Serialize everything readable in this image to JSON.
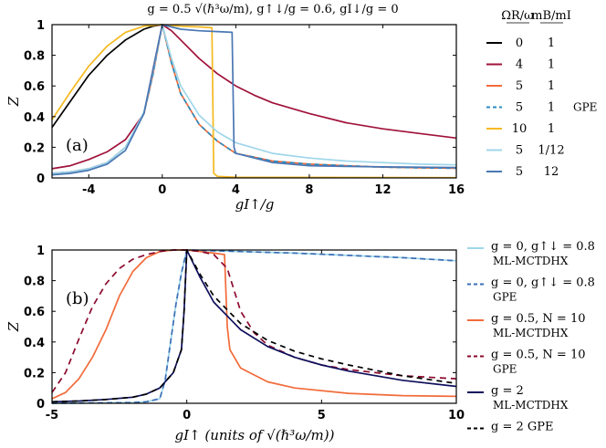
{
  "colors": {
    "black": "#000000",
    "crimson": "#a0123a",
    "coral": "#f26b3a",
    "teal": "#2a8bbf",
    "gold": "#f5b921",
    "lightblue": "#9fd6ea",
    "steel": "#4a77b4",
    "navy": "#0f0f5c",
    "darkred": "#8b0a2e",
    "dashblue": "#3b6fb6"
  },
  "chart_data": [
    {
      "id": "a",
      "type": "line",
      "panel_label": "(a)",
      "title": "g = 0.5 √(ℏ³ω/m),  g↑↓/g = 0.6,  gI↓/g = 0",
      "xlabel": "gI↑/g",
      "ylabel": "Z",
      "xlim": [
        -6,
        16
      ],
      "ylim": [
        0,
        1
      ],
      "xticks": [
        -4,
        0,
        4,
        8,
        12,
        16
      ],
      "xtick_labels": [
        "-4",
        "0",
        "4",
        "8",
        "12",
        "16"
      ],
      "yticks": [
        0,
        0.2,
        0.4,
        0.6,
        0.8,
        1
      ],
      "ytick_labels": [
        "0",
        "0.2",
        "0.4",
        "0.6",
        "0.8",
        "1"
      ],
      "legend": {
        "header": [
          "ΩR/ω",
          "mB/mI"
        ],
        "entries": [
          {
            "omega": "0",
            "mass": "1",
            "extra": ""
          },
          {
            "omega": "4",
            "mass": "1",
            "extra": ""
          },
          {
            "omega": "5",
            "mass": "1",
            "extra": ""
          },
          {
            "omega": "5",
            "mass": "1",
            "extra": "GPE"
          },
          {
            "omega": "10",
            "mass": "1",
            "extra": ""
          },
          {
            "omega": "5",
            "mass": "1/12",
            "extra": ""
          },
          {
            "omega": "5",
            "mass": "12",
            "extra": ""
          }
        ]
      },
      "series": [
        {
          "name": "ΩR/ω=0, mB/mI=1",
          "color": "#000000",
          "dash": "",
          "x": [
            -6,
            -5,
            -4,
            -3,
            -2,
            -1,
            -0.5,
            0
          ],
          "y": [
            0.33,
            0.5,
            0.67,
            0.8,
            0.9,
            0.97,
            0.99,
            1
          ]
        },
        {
          "name": "ΩR/ω=4, mB/mI=1",
          "color": "#a0123a",
          "dash": "",
          "x": [
            -6,
            -5,
            -4,
            -3,
            -2,
            -1,
            0,
            0.5,
            1,
            2,
            3,
            4,
            5,
            6,
            8,
            10,
            12,
            14,
            16
          ],
          "y": [
            0.06,
            0.08,
            0.12,
            0.17,
            0.25,
            0.42,
            1,
            0.96,
            0.9,
            0.78,
            0.68,
            0.6,
            0.54,
            0.49,
            0.42,
            0.36,
            0.32,
            0.29,
            0.26
          ]
        },
        {
          "name": "ΩR/ω=5, mB/mI=1",
          "color": "#f26b3a",
          "dash": "",
          "x": [
            -6,
            -5,
            -4,
            -3,
            -2,
            -1,
            -0.5,
            0,
            0.5,
            1,
            2,
            3,
            4,
            6,
            8,
            10,
            12,
            14,
            16
          ],
          "y": [
            0.03,
            0.04,
            0.06,
            0.1,
            0.2,
            0.42,
            0.68,
            1,
            0.75,
            0.55,
            0.35,
            0.24,
            0.16,
            0.11,
            0.09,
            0.08,
            0.07,
            0.066,
            0.063
          ]
        },
        {
          "name": "ΩR/ω=5, mB/mI=1 GPE",
          "color": "#2a8bbf",
          "dash": "5,4",
          "x": [
            -6,
            -5,
            -4,
            -3,
            -2,
            -1,
            -0.5,
            0,
            0.5,
            1,
            2,
            3,
            4,
            6,
            8,
            10,
            12,
            14,
            16
          ],
          "y": [
            0.03,
            0.04,
            0.06,
            0.1,
            0.2,
            0.42,
            0.68,
            1,
            0.75,
            0.55,
            0.35,
            0.24,
            0.16,
            0.11,
            0.09,
            0.08,
            0.07,
            0.066,
            0.063
          ]
        },
        {
          "name": "ΩR/ω=10, mB/mI=1",
          "color": "#f5b921",
          "dash": "",
          "x": [
            -6,
            -5,
            -4,
            -3,
            -2,
            -1,
            0,
            1,
            2,
            2.7,
            2.8,
            3,
            4,
            16
          ],
          "y": [
            0.38,
            0.56,
            0.73,
            0.86,
            0.95,
            0.99,
            1,
            0.99,
            0.985,
            0.98,
            0.03,
            0.01,
            0.005,
            0.002
          ]
        },
        {
          "name": "ΩR/ω=5, mB/mI=1/12",
          "color": "#9fd6ea",
          "dash": "",
          "x": [
            -6,
            -5,
            -4,
            -3,
            -2,
            -1,
            -0.5,
            0,
            0.5,
            1,
            2,
            3,
            4,
            6,
            8,
            10,
            12,
            14,
            16
          ],
          "y": [
            0.03,
            0.04,
            0.06,
            0.1,
            0.2,
            0.43,
            0.7,
            1,
            0.78,
            0.6,
            0.41,
            0.3,
            0.23,
            0.16,
            0.13,
            0.11,
            0.1,
            0.09,
            0.085
          ]
        },
        {
          "name": "ΩR/ω=5, mB/mI=12",
          "color": "#4a77b4",
          "dash": "",
          "x": [
            -6,
            -5,
            -4,
            -3,
            -2,
            -1,
            0,
            1,
            2,
            3,
            3.8,
            3.9,
            4,
            6,
            8,
            10,
            12,
            14,
            16
          ],
          "y": [
            0.02,
            0.03,
            0.05,
            0.09,
            0.18,
            0.42,
            1,
            0.97,
            0.96,
            0.955,
            0.95,
            0.2,
            0.16,
            0.1,
            0.08,
            0.075,
            0.072,
            0.07,
            0.068
          ]
        }
      ]
    },
    {
      "id": "b",
      "type": "line",
      "panel_label": "(b)",
      "title": "",
      "xlabel": "gI↑ (units of √(ℏ³ω/m))",
      "ylabel": "Z",
      "xlim": [
        -5,
        10
      ],
      "ylim": [
        0,
        1
      ],
      "xticks": [
        -5,
        0,
        5,
        10
      ],
      "xtick_labels": [
        "-5",
        "0",
        "5",
        "10"
      ],
      "yticks": [
        0,
        0.2,
        0.4,
        0.6,
        0.8,
        1
      ],
      "ytick_labels": [
        "0",
        "0.2",
        "0.4",
        "0.6",
        "0.8",
        "1"
      ],
      "legend": {
        "entries": [
          {
            "line1": "g = 0, g↑↓ = 0.8",
            "line2": "ML-MCTDHX"
          },
          {
            "line1": "g = 0, g↑↓ = 0.8",
            "line2": "GPE"
          },
          {
            "line1": "g = 0.5, N = 10",
            "line2": "ML-MCTDHX"
          },
          {
            "line1": "g = 0.5, N = 10",
            "line2": "GPE"
          },
          {
            "line1": "g = 2",
            "line2": "ML-MCTDHX"
          },
          {
            "line1": "g = 2  GPE",
            "line2": ""
          }
        ]
      },
      "series": [
        {
          "name": "g=0, g↑↓=0.8 ML-MCTDHX",
          "color": "#9fd6ea",
          "dash": "",
          "x": [
            -5,
            -2,
            -1.5,
            -1,
            -0.8,
            -0.6,
            -0.4,
            -0.2,
            0,
            2,
            4,
            6,
            8,
            10
          ],
          "y": [
            0,
            0.005,
            0.01,
            0.03,
            0.15,
            0.4,
            0.65,
            0.85,
            1,
            0.99,
            0.98,
            0.965,
            0.95,
            0.93
          ]
        },
        {
          "name": "g=0, g↑↓=0.8 GPE",
          "color": "#3b6fb6",
          "dash": "6,4",
          "x": [
            -5,
            -2,
            -1.5,
            -1,
            -0.8,
            -0.6,
            -0.4,
            -0.2,
            0,
            2,
            4,
            6,
            8,
            10
          ],
          "y": [
            0,
            0.005,
            0.01,
            0.03,
            0.15,
            0.4,
            0.65,
            0.85,
            1,
            0.99,
            0.98,
            0.965,
            0.95,
            0.93
          ]
        },
        {
          "name": "g=0.5, N=10 ML-MCTDHX",
          "color": "#f26b3a",
          "dash": "",
          "x": [
            -5,
            -4.5,
            -4,
            -3.5,
            -3,
            -2.5,
            -2,
            -1.5,
            -1,
            -0.5,
            0,
            0.5,
            1,
            1.4,
            1.5,
            1.6,
            2,
            3,
            4,
            6,
            8,
            10
          ],
          "y": [
            0.03,
            0.07,
            0.16,
            0.3,
            0.48,
            0.7,
            0.86,
            0.95,
            0.99,
            1,
            1,
            0.99,
            0.98,
            0.97,
            0.5,
            0.35,
            0.23,
            0.14,
            0.1,
            0.065,
            0.05,
            0.045
          ]
        },
        {
          "name": "g=0.5, N=10 GPE",
          "color": "#8b0a2e",
          "dash": "7,5",
          "x": [
            -5,
            -4.5,
            -4,
            -3.5,
            -3,
            -2.5,
            -2,
            -1.5,
            -1,
            -0.5,
            0,
            0.5,
            1,
            1.5,
            2,
            2.5,
            3,
            4,
            5,
            6,
            8,
            10
          ],
          "y": [
            0.07,
            0.2,
            0.42,
            0.63,
            0.78,
            0.88,
            0.94,
            0.97,
            0.99,
            1,
            1,
            0.99,
            0.97,
            0.88,
            0.6,
            0.46,
            0.38,
            0.3,
            0.25,
            0.22,
            0.18,
            0.16
          ]
        },
        {
          "name": "g=2 ML-MCTDHX",
          "color": "#0f0f5c",
          "dash": "",
          "x": [
            -5,
            -4,
            -3,
            -2,
            -1.5,
            -1,
            -0.5,
            -0.2,
            -0.1,
            0,
            0.5,
            1,
            2,
            3,
            4,
            5,
            6,
            8,
            10
          ],
          "y": [
            0.01,
            0.015,
            0.025,
            0.04,
            0.06,
            0.1,
            0.2,
            0.35,
            0.6,
            1,
            0.82,
            0.66,
            0.48,
            0.37,
            0.3,
            0.25,
            0.21,
            0.15,
            0.11
          ]
        },
        {
          "name": "g=2 GPE",
          "color": "#000000",
          "dash": "6,5",
          "x": [
            -5,
            -4,
            -3,
            -2,
            -1.5,
            -1,
            -0.5,
            -0.2,
            -0.1,
            0,
            0.5,
            1,
            2,
            3,
            4,
            5,
            6,
            8,
            10
          ],
          "y": [
            0.01,
            0.015,
            0.025,
            0.04,
            0.06,
            0.1,
            0.2,
            0.35,
            0.6,
            1,
            0.84,
            0.7,
            0.52,
            0.41,
            0.34,
            0.29,
            0.25,
            0.18,
            0.13
          ]
        }
      ]
    }
  ]
}
